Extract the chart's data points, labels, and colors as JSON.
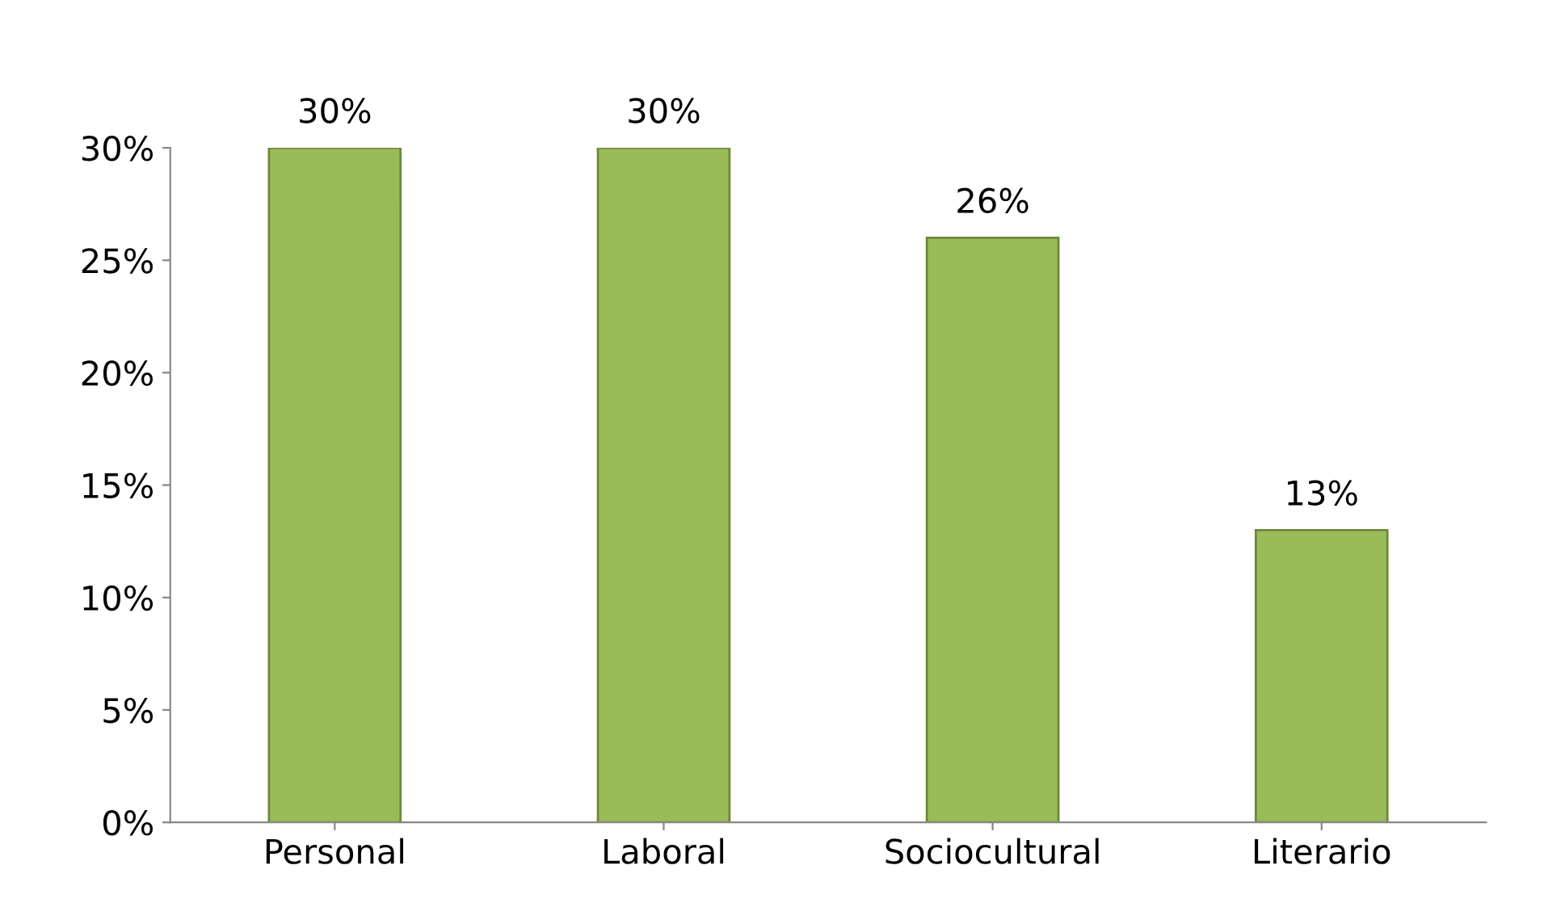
{
  "chart_data": {
    "type": "bar",
    "categories": [
      "Personal",
      "Laboral",
      "Sociocultural",
      "Literario"
    ],
    "values": [
      30,
      30,
      26,
      13
    ],
    "color": "#9bbb59",
    "value_labels": [
      "30%",
      "30%",
      "26%",
      "13%"
    ],
    "ylim": [
      0,
      30
    ],
    "yticks": [
      {
        "value": 0,
        "label": "0%"
      },
      {
        "value": 5,
        "label": "5%"
      },
      {
        "value": 10,
        "label": "10%"
      },
      {
        "value": 15,
        "label": "15%"
      },
      {
        "value": 20,
        "label": "20%"
      },
      {
        "value": 25,
        "label": "25%"
      },
      {
        "value": 30,
        "label": "30%"
      }
    ],
    "grid": false,
    "legend": false
  }
}
